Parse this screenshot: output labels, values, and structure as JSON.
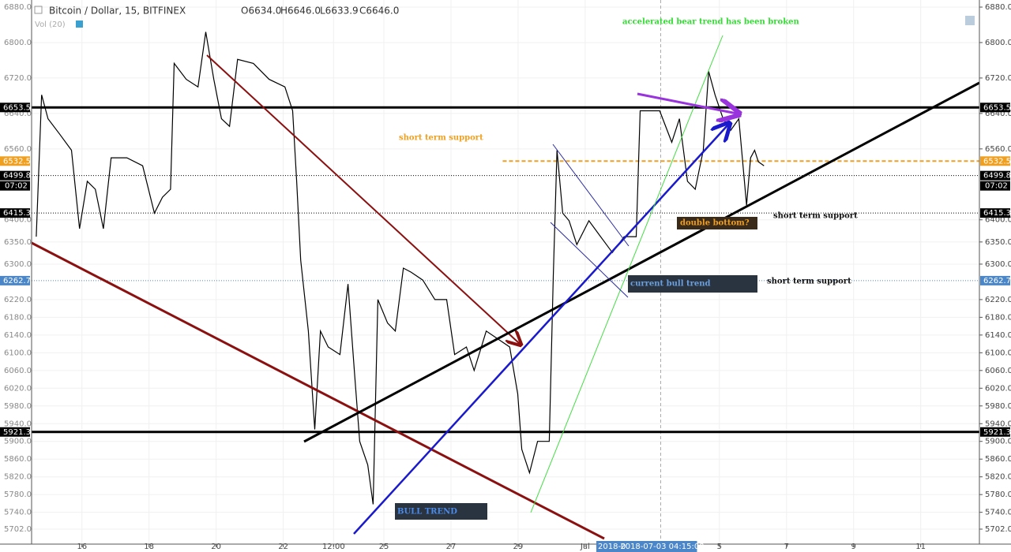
{
  "header": {
    "symbol": "Bitcoin / Dollar, 15, BITFINEX",
    "open": "O6634.0",
    "high": "H6646.0",
    "low": "L6633.9",
    "close": "C6646.0",
    "volume": "Vol (20)"
  },
  "chart_data": {
    "type": "line",
    "x": [
      14.64,
      14.8,
      14.99,
      15.34,
      15.69,
      15.93,
      16.16,
      16.4,
      16.64,
      16.87,
      17.34,
      17.81,
      18.16,
      18.4,
      18.64,
      18.75,
      19.11,
      19.46,
      19.69,
      19.93,
      20.16,
      20.4,
      20.64,
      21.11,
      21.58,
      22.05,
      22.28,
      22.4,
      22.52,
      22.75,
      22.94,
      23.11,
      23.34,
      23.69,
      23.93,
      24.12,
      24.28,
      24.52,
      24.68,
      24.82,
      25.11,
      25.34,
      25.58,
      25.81,
      26.16,
      26.52,
      26.87,
      27.11,
      27.46,
      27.69,
      28.05,
      28.4,
      28.75,
      28.99,
      29.11,
      29.34,
      29.58,
      29.93,
      30.05,
      30.16,
      30.33,
      30.52,
      30.75,
      31.11,
      31.46,
      31.81,
      32.16,
      32.52,
      32.64,
      32.88,
      33.22,
      33.58,
      33.81,
      34.05,
      34.28,
      34.52,
      34.68,
      34.87,
      35.11,
      35.34,
      35.58,
      35.81,
      35.93,
      36.05,
      36.16,
      36.33
    ],
    "series": [
      {
        "color": "#000000",
        "values": [
          6362,
          6682,
          6628,
          6593,
          6557,
          6380,
          6487,
          6469,
          6380,
          6540,
          6540,
          6522,
          6415,
          6451,
          6469,
          6753,
          6717,
          6700,
          6824,
          6717,
          6628,
          6611,
          6762,
          6753,
          6717,
          6700,
          6646,
          6487,
          6309,
          6149,
          5927,
          6149,
          6113,
          6096,
          6255,
          6060,
          5900,
          5847,
          5758,
          6220,
          6167,
          6149,
          6291,
          6282,
          6264,
          6220,
          6220,
          6096,
          6113,
          6060,
          6149,
          6131,
          6113,
          6007,
          5882,
          5829,
          5900,
          5900,
          6273,
          6557,
          6415,
          6398,
          6344,
          6398,
          6362,
          6326,
          6362,
          6362,
          6646,
          6646,
          6646,
          6575,
          6628,
          6487,
          6469,
          6557,
          6735,
          6682,
          6628,
          6602,
          6628,
          6433,
          6540,
          6557,
          6531,
          6522
        ]
      }
    ],
    "xlim": [
      14.5,
      42.75
    ],
    "xticks": [
      16,
      18,
      20,
      22,
      {
        "value": 23.5,
        "label": "12:00"
      },
      25,
      27,
      29,
      {
        "value": 31,
        "label": "Jul"
      },
      {
        "value": 35,
        "label": "5"
      },
      {
        "value": 37,
        "label": "7"
      },
      {
        "value": 39,
        "label": "9"
      },
      {
        "value": 41,
        "label": "11"
      }
    ],
    "ylim": [
      5702,
      6880
    ],
    "yticks": [
      {
        "value": 6880,
        "label": "6880.0"
      },
      {
        "value": 6800,
        "label": "6800.0"
      },
      {
        "value": 6720,
        "label": "6720.0"
      },
      {
        "value": 6640,
        "label": "6640.0"
      },
      {
        "value": 6560,
        "label": "6560.0"
      },
      {
        "value": 6400,
        "label": "6400.0"
      },
      {
        "value": 6350,
        "label": "6350.0"
      },
      {
        "value": 6300,
        "label": "6300.0"
      },
      {
        "value": 6220,
        "label": "6220.0"
      },
      {
        "value": 6180,
        "label": "6180.0"
      },
      {
        "value": 6140,
        "label": "6140.0"
      },
      {
        "value": 6100,
        "label": "6100.0"
      },
      {
        "value": 6060,
        "label": "6060.0"
      },
      {
        "value": 6020,
        "label": "6020.0"
      },
      {
        "value": 5980,
        "label": "5980.0"
      },
      {
        "value": 5940,
        "label": "5940.0"
      },
      {
        "value": 5900,
        "label": "5900.0"
      },
      {
        "value": 5860,
        "label": "5860.0"
      },
      {
        "value": 5820,
        "label": "5820.0"
      },
      {
        "value": 5780,
        "label": "5780.0"
      },
      {
        "value": 5740,
        "label": "5740.0"
      },
      {
        "value": 5702,
        "label": "5702.0"
      }
    ],
    "grid": true,
    "levels": [
      {
        "price": 6653.5,
        "color": "#000000",
        "line": "thick"
      },
      {
        "price": 6532.5,
        "color": "#f0a020",
        "line": "dashed"
      },
      {
        "price": 6499.8,
        "color": "#000000",
        "line": "dotted"
      },
      {
        "price": 6415.3,
        "color": "#000000",
        "line": "dotted"
      },
      {
        "price": 6262.7,
        "color": "#4a86c8",
        "line": "dotted"
      },
      {
        "price": 5921.3,
        "color": "#000000",
        "line": "thick"
      }
    ],
    "countdown": "07:02",
    "crosshair": {
      "x": 33.25,
      "label": "2018-07-03 04:15:00",
      "label_short": "2018-07-"
    },
    "annotations": {
      "bear": "accelerated bear trend has been broken",
      "support1": "short term support",
      "support2": "short term support",
      "support3": "short term support",
      "double": "double bottom?",
      "current": "current bull trend",
      "bull": "BULL TREND"
    }
  }
}
